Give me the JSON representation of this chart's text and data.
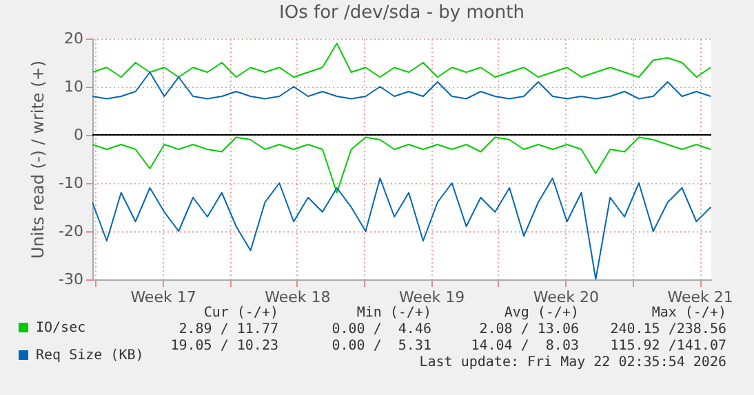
{
  "chart_data": {
    "type": "line",
    "title": "IOs for /dev/sda - by month",
    "ylabel": "Units read (-) / write (+)",
    "x": [
      "2026-04-19T20:00",
      "2026-04-20T14:00",
      "2026-04-21T08:00",
      "2026-04-22T02:00",
      "2026-04-22T20:00",
      "2026-04-23T14:00",
      "2026-04-24T08:00",
      "2026-04-25T02:00",
      "2026-04-25T20:00",
      "2026-04-26T14:00",
      "2026-04-27T08:00",
      "2026-04-28T02:00",
      "2026-04-28T20:00",
      "2026-04-29T14:00",
      "2026-04-30T08:00",
      "2026-05-01T02:00",
      "2026-05-01T20:00",
      "2026-05-02T14:00",
      "2026-05-03T08:00",
      "2026-05-04T02:00",
      "2026-05-04T20:00",
      "2026-05-05T14:00",
      "2026-05-06T08:00",
      "2026-05-07T02:00",
      "2026-05-07T20:00",
      "2026-05-08T14:00",
      "2026-05-09T08:00",
      "2026-05-10T02:00",
      "2026-05-10T20:00",
      "2026-05-11T14:00",
      "2026-05-12T08:00",
      "2026-05-13T02:00",
      "2026-05-13T20:00",
      "2026-05-14T14:00",
      "2026-05-15T08:00",
      "2026-05-16T02:00",
      "2026-05-16T20:00",
      "2026-05-17T14:00",
      "2026-05-18T08:00",
      "2026-05-19T02:00",
      "2026-05-19T20:00",
      "2026-05-20T14:00",
      "2026-05-21T08:00",
      "2026-05-22T02:00"
    ],
    "series": [
      {
        "name": "IO/sec",
        "color": "#00cc00",
        "values": [
          13,
          14,
          12,
          15,
          13,
          14,
          12,
          14,
          13,
          15,
          12,
          14,
          13,
          14,
          12,
          13,
          14,
          19,
          13,
          14,
          12,
          14,
          13,
          15,
          12,
          14,
          13,
          14,
          12,
          13,
          14,
          12,
          13,
          14,
          12,
          13,
          14,
          13,
          12,
          15.5,
          16,
          15,
          12,
          14
        ]
      },
      {
        "color": "#00cc00",
        "values": [
          -2,
          -3,
          -2,
          -3,
          -7,
          -2,
          -3,
          -2,
          -3,
          -3.5,
          -0.5,
          -1,
          -3,
          -2,
          -3,
          -2,
          -3,
          -12,
          -3,
          -0.5,
          -1,
          -3,
          -2,
          -3,
          -2,
          -3,
          -2,
          -3.5,
          -0.5,
          -1,
          -3,
          -2,
          -3,
          -2,
          -3,
          -8,
          -3,
          -3.5,
          -0.5,
          -1,
          -2,
          -3,
          -2,
          -3
        ]
      },
      {
        "name": "Req Size (KB)",
        "color": "#0066b3",
        "values": [
          8,
          7.5,
          8,
          9,
          13,
          8,
          12,
          8,
          7.5,
          8,
          9,
          8,
          7.5,
          8,
          10,
          8,
          9,
          8,
          7.5,
          8,
          10,
          8,
          9,
          8,
          11,
          8,
          7.5,
          9,
          8,
          7.5,
          8,
          11,
          8,
          7.5,
          8,
          7.5,
          8,
          9,
          7.5,
          8,
          11,
          8,
          9,
          8
        ]
      },
      {
        "color": "#0066b3",
        "values": [
          -14,
          -22,
          -12,
          -18,
          -11,
          -16,
          -20,
          -13,
          -17,
          -12,
          -19,
          -24,
          -14,
          -10,
          -18,
          -13,
          -16,
          -11,
          -15,
          -20,
          -9,
          -17,
          -12,
          -22,
          -14,
          -10,
          -19,
          -13,
          -16,
          -11,
          -21,
          -14,
          -9,
          -18,
          -12,
          -30,
          -13,
          -17,
          -10,
          -20,
          -14,
          -11,
          -18,
          -15
        ]
      }
    ],
    "xlim": [
      "2026-04-19T20:00",
      "2026-05-22T02:35"
    ],
    "xticks": [
      {
        "value": "2026-04-20",
        "label": null
      },
      {
        "value": "2026-04-23T12:00",
        "label": "Week 17"
      },
      {
        "value": "2026-04-27",
        "label": null
      },
      {
        "value": "2026-04-30T12:00",
        "label": "Week 18"
      },
      {
        "value": "2026-05-04",
        "label": null
      },
      {
        "value": "2026-05-07T12:00",
        "label": "Week 19"
      },
      {
        "value": "2026-05-11",
        "label": null
      },
      {
        "value": "2026-05-14T12:00",
        "label": "Week 20"
      },
      {
        "value": "2026-05-18",
        "label": null
      },
      {
        "value": "2026-05-21T12:00",
        "label": "Week 21"
      }
    ],
    "ylim": [
      -30,
      20
    ],
    "yticks": [
      -30,
      -20,
      -10,
      0,
      10,
      20
    ],
    "ref_lines": [
      {
        "axis": "y",
        "value": 0,
        "color": "#000000"
      }
    ],
    "grid": true,
    "legend": "bottom left",
    "annotations": [
      "Cur (-/+)",
      "Min (-/+)",
      "Avg (-/+)",
      "Max (-/+)",
      "2.89 / 11.77",
      "0.00 /  4.46",
      "2.08 / 13.06",
      "240.15 /238.56",
      "19.05 / 10.23",
      "0.00 /  5.31",
      "14.04 /  8.03",
      "115.92 /141.07",
      "Last update: Fri May 22 02:35:54 2026"
    ]
  }
}
